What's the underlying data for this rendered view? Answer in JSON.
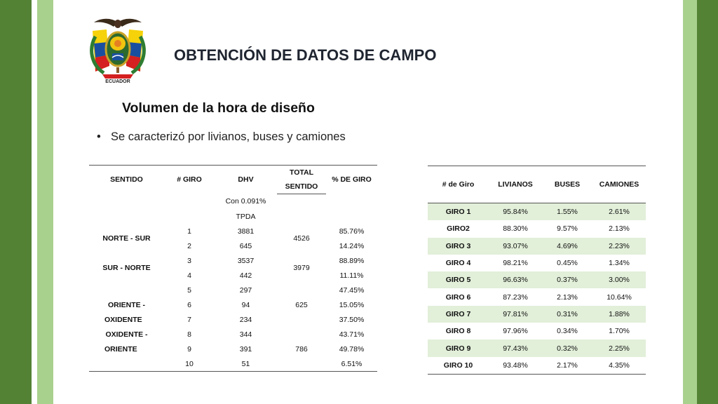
{
  "header": {
    "title": "OBTENCIÓN DE DATOS DE CAMPO",
    "subtitle": "Volumen de la hora de diseño",
    "bullet": "Se caracterizó por livianos, buses y camiones",
    "seal_text": "ECUADOR"
  },
  "table_left": {
    "headers": {
      "sentido": "SENTIDO",
      "giro": "# GIRO",
      "dhv": "DHV",
      "total_line1": "TOTAL",
      "total_line2": "SENTIDO",
      "pct": "% DE GIRO"
    },
    "dhv_note1": "Con 0.091%",
    "dhv_note2": "TPDA",
    "sentidos": [
      {
        "label_line1": "NORTE - SUR",
        "label_line2": "",
        "total": "4526"
      },
      {
        "label_line1": "SUR - NORTE",
        "label_line2": "",
        "total": "3979"
      },
      {
        "label_line1": "ORIENTE -",
        "label_line2": "OXIDENTE",
        "total": "625"
      },
      {
        "label_line1": "OXIDENTE -",
        "label_line2": "ORIENTE",
        "total": "786"
      }
    ],
    "rows": [
      {
        "giro": "1",
        "dhv": "3881",
        "pct": "85.76%"
      },
      {
        "giro": "2",
        "dhv": "645",
        "pct": "14.24%"
      },
      {
        "giro": "3",
        "dhv": "3537",
        "pct": "88.89%"
      },
      {
        "giro": "4",
        "dhv": "442",
        "pct": "11.11%"
      },
      {
        "giro": "5",
        "dhv": "297",
        "pct": "47.45%"
      },
      {
        "giro": "6",
        "dhv": "94",
        "pct": "15.05%"
      },
      {
        "giro": "7",
        "dhv": "234",
        "pct": "37.50%"
      },
      {
        "giro": "8",
        "dhv": "344",
        "pct": "43.71%"
      },
      {
        "giro": "9",
        "dhv": "391",
        "pct": "49.78%"
      },
      {
        "giro": "10",
        "dhv": "51",
        "pct": "6.51%"
      }
    ]
  },
  "table_right": {
    "headers": [
      "# de Giro",
      "LIVIANOS",
      "BUSES",
      "CAMIONES"
    ],
    "rows": [
      {
        "giro": "GIRO 1",
        "livianos": "95.84%",
        "buses": "1.55%",
        "camiones": "2.61%"
      },
      {
        "giro": "GIRO2",
        "livianos": "88.30%",
        "buses": "9.57%",
        "camiones": "2.13%"
      },
      {
        "giro": "GIRO 3",
        "livianos": "93.07%",
        "buses": "4.69%",
        "camiones": "2.23%"
      },
      {
        "giro": "GIRO 4",
        "livianos": "98.21%",
        "buses": "0.45%",
        "camiones": "1.34%"
      },
      {
        "giro": "GIRO 5",
        "livianos": "96.63%",
        "buses": "0.37%",
        "camiones": "3.00%"
      },
      {
        "giro": "GIRO 6",
        "livianos": "87.23%",
        "buses": "2.13%",
        "camiones": "10.64%"
      },
      {
        "giro": "GIRO 7",
        "livianos": "97.81%",
        "buses": "0.31%",
        "camiones": "1.88%"
      },
      {
        "giro": "GIRO 8",
        "livianos": "97.96%",
        "buses": "0.34%",
        "camiones": "1.70%"
      },
      {
        "giro": "GIRO 9",
        "livianos": "97.43%",
        "buses": "0.32%",
        "camiones": "2.25%"
      },
      {
        "giro": "GIRO 10",
        "livianos": "93.48%",
        "buses": "2.17%",
        "camiones": "4.35%"
      }
    ]
  },
  "colors": {
    "dark_green": "#548235",
    "light_green": "#a9d18e",
    "row_tint": "#e2efd9"
  }
}
